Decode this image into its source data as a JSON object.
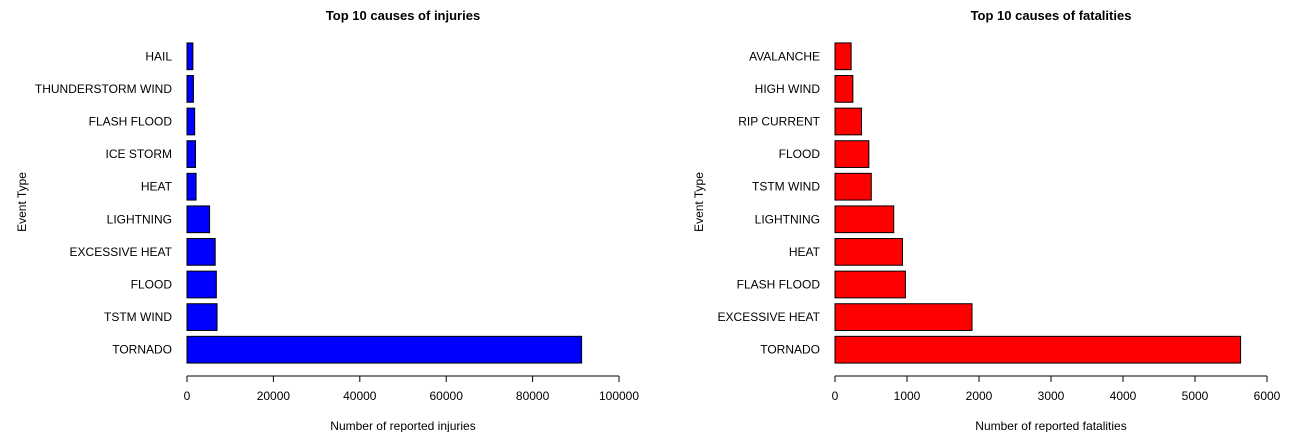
{
  "chart_data": [
    {
      "type": "bar",
      "orientation": "horizontal",
      "title": "Top 10 causes of injuries",
      "xlabel": "Number of reported injuries",
      "ylabel": "Event Type",
      "categories": [
        "TORNADO",
        "TSTM WIND",
        "FLOOD",
        "EXCESSIVE HEAT",
        "LIGHTNING",
        "HEAT",
        "ICE STORM",
        "FLASH FLOOD",
        "THUNDERSTORM WIND",
        "HAIL"
      ],
      "values": [
        91346,
        6957,
        6789,
        6525,
        5230,
        2100,
        1975,
        1777,
        1488,
        1361
      ],
      "xticks": [
        0,
        20000,
        40000,
        60000,
        80000,
        100000
      ],
      "xlim": [
        0,
        100000
      ],
      "bar_color": "#0000ff",
      "grid": false
    },
    {
      "type": "bar",
      "orientation": "horizontal",
      "title": "Top 10 causes of fatalities",
      "xlabel": "Number of reported fatalities",
      "ylabel": "Event Type",
      "categories": [
        "TORNADO",
        "EXCESSIVE HEAT",
        "FLASH FLOOD",
        "HEAT",
        "LIGHTNING",
        "TSTM WIND",
        "FLOOD",
        "RIP CURRENT",
        "HIGH WIND",
        "AVALANCHE"
      ],
      "values": [
        5633,
        1903,
        978,
        937,
        816,
        504,
        470,
        368,
        248,
        224
      ],
      "xticks": [
        0,
        1000,
        2000,
        3000,
        4000,
        5000,
        6000
      ],
      "xlim": [
        0,
        6000
      ],
      "bar_color": "#ff0000",
      "grid": false
    }
  ]
}
